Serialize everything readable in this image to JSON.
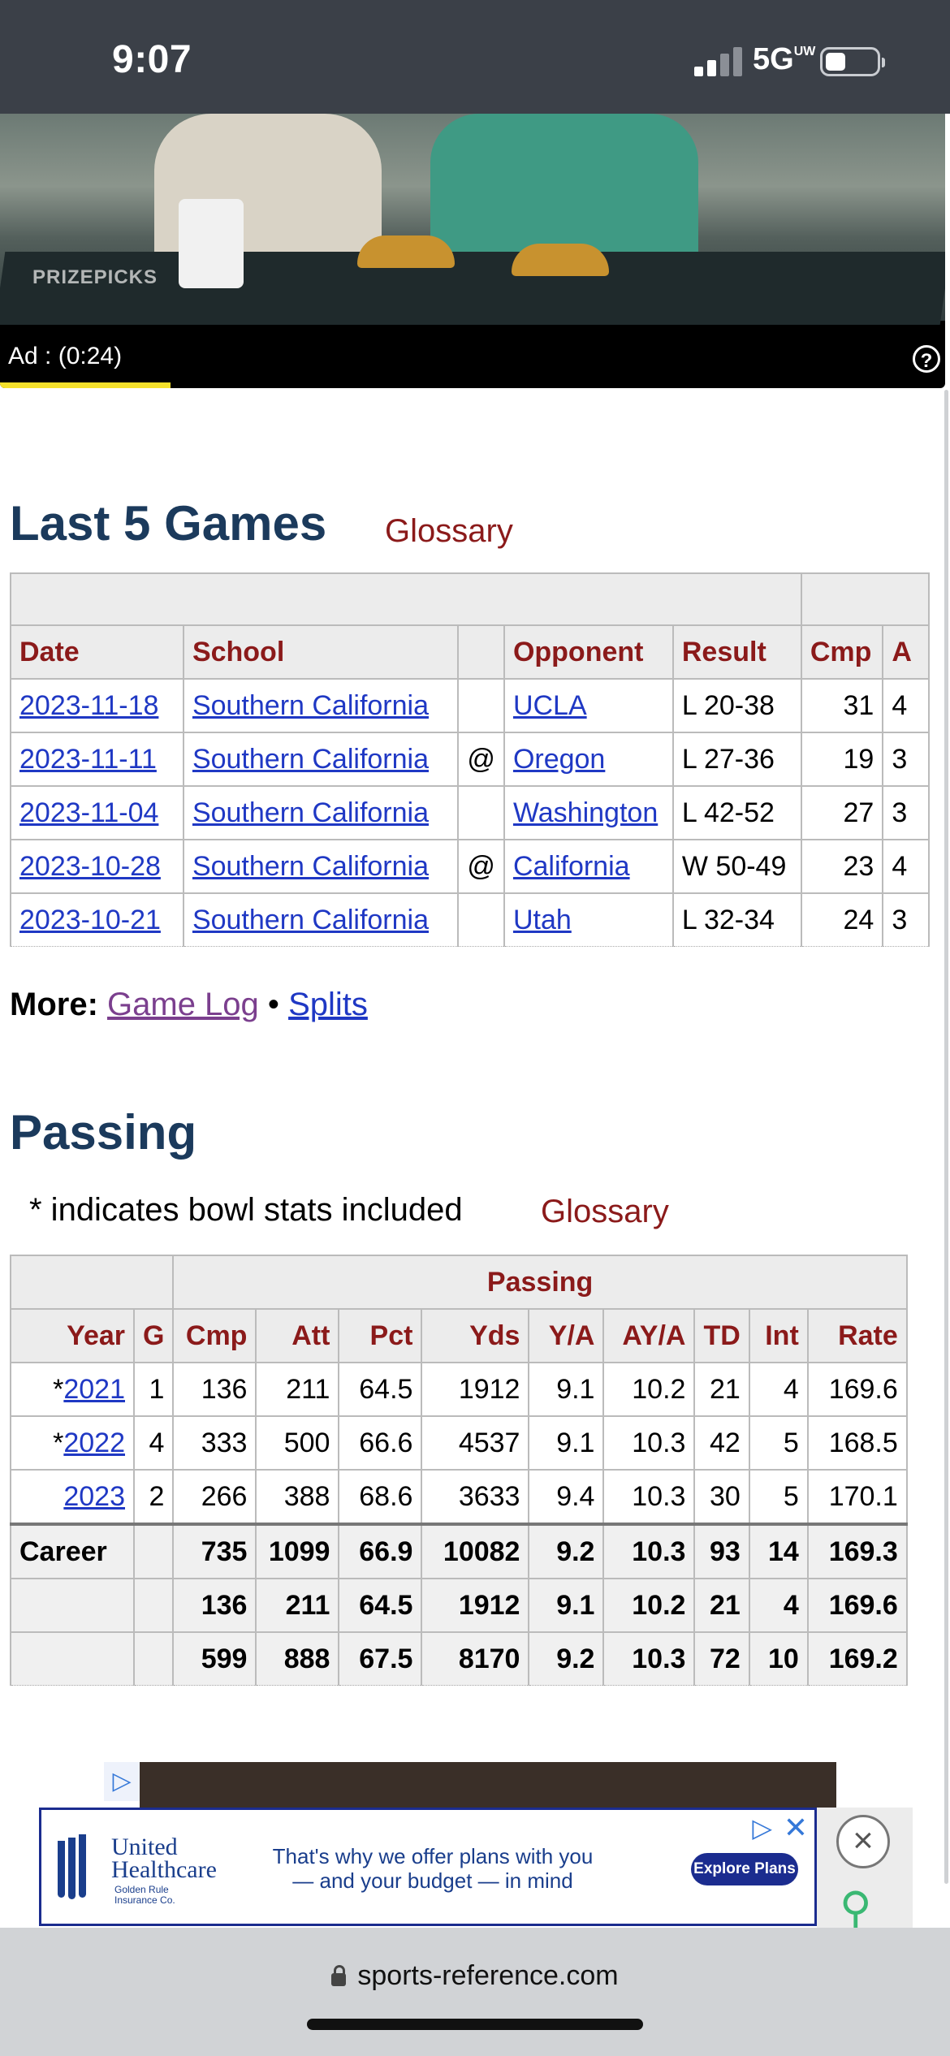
{
  "status": {
    "time": "9:07",
    "network": "5G",
    "network_sup": "UW"
  },
  "video_ad": {
    "watermark": "PRIZEPICKS",
    "label": "Ad : (0:24)",
    "progress": 0.18,
    "help": "?"
  },
  "last5": {
    "heading": "Last 5 Games",
    "glossary": "Glossary",
    "columns": [
      "Date",
      "School",
      "",
      "Opponent",
      "Result",
      "Cmp",
      "A"
    ],
    "rows": [
      {
        "date": "2023-11-18",
        "school": "Southern California",
        "loc": "",
        "opp": "UCLA",
        "result": "L 20-38",
        "cmp": "31",
        "a": "4"
      },
      {
        "date": "2023-11-11",
        "school": "Southern California",
        "loc": "@",
        "opp": "Oregon",
        "result": "L 27-36",
        "cmp": "19",
        "a": "3"
      },
      {
        "date": "2023-11-04",
        "school": "Southern California",
        "loc": "",
        "opp": "Washington",
        "result": "L 42-52",
        "cmp": "27",
        "a": "3"
      },
      {
        "date": "2023-10-28",
        "school": "Southern California",
        "loc": "@",
        "opp": "California",
        "result": "W 50-49",
        "cmp": "23",
        "a": "4"
      },
      {
        "date": "2023-10-21",
        "school": "Southern California",
        "loc": "",
        "opp": "Utah",
        "result": "L 32-34",
        "cmp": "24",
        "a": "3"
      }
    ]
  },
  "more": {
    "label": "More:",
    "game_log": "Game Log",
    "sep": "•",
    "splits": "Splits"
  },
  "passing": {
    "heading": "Passing",
    "note": "* indicates bowl stats included",
    "glossary": "Glossary",
    "group_header": "Passing",
    "columns": [
      "Year",
      "G",
      "Cmp",
      "Att",
      "Pct",
      "Yds",
      "Y/A",
      "AY/A",
      "TD",
      "Int",
      "Rate"
    ],
    "rows": [
      {
        "star": "*",
        "year": "2021",
        "g": "1",
        "cmp": "136",
        "att": "211",
        "pct": "64.5",
        "yds": "1912",
        "ya": "9.1",
        "aya": "10.2",
        "td": "21",
        "int": "4",
        "rate": "169.6"
      },
      {
        "star": "*",
        "year": "2022",
        "g": "4",
        "cmp": "333",
        "att": "500",
        "pct": "66.6",
        "yds": "4537",
        "ya": "9.1",
        "aya": "10.3",
        "td": "42",
        "int": "5",
        "rate": "168.5"
      },
      {
        "star": "",
        "year": "2023",
        "g": "2",
        "cmp": "266",
        "att": "388",
        "pct": "68.6",
        "yds": "3633",
        "ya": "9.4",
        "aya": "10.3",
        "td": "30",
        "int": "5",
        "rate": "170.1"
      }
    ],
    "totals": [
      {
        "label": "Career",
        "cmp": "735",
        "att": "1099",
        "pct": "66.9",
        "yds": "10082",
        "ya": "9.2",
        "aya": "10.3",
        "td": "93",
        "int": "14",
        "rate": "169.3"
      },
      {
        "label": "",
        "cmp": "136",
        "att": "211",
        "pct": "64.5",
        "yds": "1912",
        "ya": "9.1",
        "aya": "10.2",
        "td": "21",
        "int": "4",
        "rate": "169.6"
      },
      {
        "label": "",
        "cmp": "599",
        "att": "888",
        "pct": "67.5",
        "yds": "8170",
        "ya": "9.2",
        "aya": "10.3",
        "td": "72",
        "int": "10",
        "rate": "169.2"
      }
    ]
  },
  "banner_ad": {
    "brand_line1": "United",
    "brand_line2": "Healthcare",
    "brand_sub1": "Golden Rule",
    "brand_sub2": "Insurance Co.",
    "text_line1": "That's why we offer plans with you",
    "text_line2": "— and your budget — in mind",
    "cta": "Explore Plans",
    "close": "✕"
  },
  "browser": {
    "url": "sports-reference.com"
  }
}
